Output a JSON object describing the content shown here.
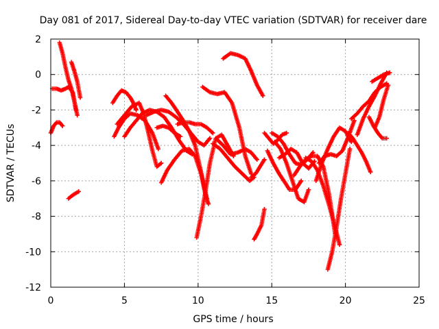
{
  "chart_data": {
    "type": "scatter",
    "title": "Day 081 of 2017, Sidereal Day-to-day VTEC variation (SDTVAR) for receiver dare",
    "xlabel": "GPS time / hours",
    "ylabel": "SDTVAR / TECUs",
    "xlim": [
      0,
      25
    ],
    "ylim": [
      -12,
      2
    ],
    "xticks": [
      0,
      5,
      10,
      15,
      20,
      25
    ],
    "yticks": [
      -12,
      -10,
      -8,
      -6,
      -4,
      -2,
      0,
      2
    ],
    "grid": true,
    "marker": "+",
    "color": "#ff0000",
    "series": [
      {
        "x": [
          0.0,
          0.2,
          0.4,
          0.6,
          0.8
        ],
        "y": [
          -3.3,
          -2.9,
          -2.7,
          -2.7,
          -2.9
        ]
      },
      {
        "x": [
          0.1,
          0.4,
          0.7,
          1.0,
          1.2,
          1.5,
          1.7
        ],
        "y": [
          -0.8,
          -0.8,
          -0.9,
          -0.8,
          -0.7,
          -1.0,
          -2.0
        ]
      },
      {
        "x": [
          0.6,
          0.8,
          1.0,
          1.2,
          1.4,
          1.6,
          1.8
        ],
        "y": [
          1.8,
          1.2,
          0.4,
          -0.3,
          -0.8,
          -1.5,
          -2.3
        ]
      },
      {
        "x": [
          1.4,
          1.6,
          1.8,
          2.0
        ],
        "y": [
          0.7,
          0.2,
          -0.4,
          -1.3
        ]
      },
      {
        "x": [
          1.2,
          1.5,
          1.9
        ],
        "y": [
          -7.0,
          -6.8,
          -6.6
        ]
      },
      {
        "x": [
          4.2,
          4.5,
          4.8,
          5.1,
          5.4,
          5.6,
          5.8
        ],
        "y": [
          -1.6,
          -1.2,
          -0.9,
          -1.0,
          -1.3,
          -1.6,
          -2.0
        ]
      },
      {
        "x": [
          4.3,
          4.6,
          5.0,
          5.4,
          5.9,
          6.4,
          6.9,
          7.3
        ],
        "y": [
          -3.5,
          -3.0,
          -2.5,
          -2.2,
          -2.3,
          -2.6,
          -3.3,
          -4.2
        ]
      },
      {
        "x": [
          4.5,
          5.0,
          5.5,
          6.0,
          6.3,
          6.6,
          6.9,
          7.2,
          7.5
        ],
        "y": [
          -2.8,
          -2.3,
          -1.8,
          -1.6,
          -2.2,
          -3.2,
          -4.3,
          -5.2,
          -5.0
        ]
      },
      {
        "x": [
          5.0,
          5.4,
          5.8,
          6.2,
          6.7,
          7.2,
          7.7,
          8.2,
          8.7,
          9.2,
          9.6
        ],
        "y": [
          -3.5,
          -3.0,
          -2.6,
          -2.2,
          -2.0,
          -2.1,
          -2.4,
          -3.0,
          -3.7,
          -4.3,
          -4.5
        ]
      },
      {
        "x": [
          6.5,
          7.0,
          7.5,
          8.0,
          8.5,
          9.0,
          9.5,
          10.0,
          10.4,
          10.8
        ],
        "y": [
          -2.3,
          -2.1,
          -2.0,
          -2.1,
          -2.4,
          -2.8,
          -3.3,
          -3.8,
          -4.0,
          -3.6
        ]
      },
      {
        "x": [
          7.2,
          7.6,
          8.0,
          8.4,
          8.8
        ],
        "y": [
          -3.0,
          -2.9,
          -3.0,
          -3.3,
          -3.5
        ]
      },
      {
        "x": [
          7.8,
          8.2,
          8.6,
          9.0,
          9.4,
          9.8,
          10.2,
          10.6
        ],
        "y": [
          -1.2,
          -1.6,
          -2.1,
          -2.6,
          -3.2,
          -4.0,
          -5.5,
          -7.0
        ]
      },
      {
        "x": [
          7.5,
          7.9,
          8.4,
          8.9,
          9.4,
          9.8,
          10.2,
          10.5,
          10.7
        ],
        "y": [
          -6.1,
          -5.4,
          -4.8,
          -4.3,
          -4.2,
          -4.6,
          -5.6,
          -6.8,
          -7.3
        ]
      },
      {
        "x": [
          8.6,
          9.0,
          9.4,
          9.8,
          10.2,
          10.6,
          11.0
        ],
        "y": [
          -2.8,
          -2.7,
          -2.7,
          -2.8,
          -2.8,
          -3.0,
          -3.3
        ]
      },
      {
        "x": [
          9.9,
          10.2,
          10.5,
          10.8,
          11.2,
          11.6,
          12.0,
          12.4
        ],
        "y": [
          -9.2,
          -8.0,
          -6.6,
          -5.0,
          -3.6,
          -3.4,
          -4.0,
          -4.6
        ]
      },
      {
        "x": [
          10.3,
          10.8,
          11.3,
          11.8,
          12.3,
          12.8,
          13.2,
          13.6
        ],
        "y": [
          -0.7,
          -1.0,
          -1.1,
          -1.0,
          -1.6,
          -3.0,
          -4.6,
          -5.6
        ]
      },
      {
        "x": [
          11.2,
          11.7,
          12.2,
          12.7,
          13.2,
          13.6,
          14.0
        ],
        "y": [
          -3.6,
          -4.0,
          -4.5,
          -4.4,
          -4.2,
          -4.4,
          -4.8
        ]
      },
      {
        "x": [
          11.7,
          12.2,
          12.7,
          13.2,
          13.6,
          14.0,
          14.4
        ],
        "y": [
          0.9,
          1.2,
          1.1,
          0.9,
          0.2,
          -0.6,
          -1.2
        ]
      },
      {
        "x": [
          11.0,
          11.5,
          12.0,
          12.5,
          13.0,
          13.5,
          13.8
        ],
        "y": [
          -3.9,
          -4.2,
          -4.7,
          -5.2,
          -5.6,
          -6.0,
          -5.8
        ]
      },
      {
        "x": [
          13.8,
          14.0,
          14.3,
          14.5
        ],
        "y": [
          -9.3,
          -9.0,
          -8.5,
          -7.6
        ]
      },
      {
        "x": [
          13.6,
          13.9,
          14.2,
          14.5
        ],
        "y": [
          -5.8,
          -5.6,
          -5.2,
          -4.8
        ]
      },
      {
        "x": [
          14.5,
          14.8,
          15.1,
          15.4,
          15.7,
          16.0
        ],
        "y": [
          -3.3,
          -3.6,
          -3.9,
          -3.7,
          -3.4,
          -3.3
        ]
      },
      {
        "x": [
          14.7,
          15.1,
          15.5,
          15.9,
          16.2,
          16.6,
          17.0
        ],
        "y": [
          -4.3,
          -5.0,
          -5.6,
          -6.1,
          -6.5,
          -6.5,
          -6.0
        ]
      },
      {
        "x": [
          15.0,
          15.4,
          15.8,
          16.2,
          16.6,
          17.0,
          17.4,
          17.8
        ],
        "y": [
          -3.3,
          -3.5,
          -3.9,
          -4.5,
          -5.0,
          -5.1,
          -4.8,
          -4.4
        ]
      },
      {
        "x": [
          15.2,
          15.6,
          16.0,
          16.4,
          16.8,
          17.2,
          17.5
        ],
        "y": [
          -3.8,
          -4.2,
          -5.0,
          -6.0,
          -7.0,
          -7.2,
          -6.5
        ]
      },
      {
        "x": [
          15.5,
          15.9,
          16.3,
          16.7,
          17.1,
          17.5,
          17.9
        ],
        "y": [
          -4.7,
          -4.5,
          -4.2,
          -4.4,
          -5.0,
          -5.3,
          -4.9
        ]
      },
      {
        "x": [
          16.5,
          16.9,
          17.3,
          17.7,
          18.1,
          18.5,
          18.9,
          19.3
        ],
        "y": [
          -5.7,
          -5.2,
          -4.8,
          -4.6,
          -4.6,
          -5.2,
          -6.8,
          -9.0
        ]
      },
      {
        "x": [
          17.3,
          17.7,
          18.1,
          18.5,
          18.9,
          19.3,
          19.6
        ],
        "y": [
          -4.7,
          -4.9,
          -5.4,
          -6.3,
          -7.4,
          -8.6,
          -9.6
        ]
      },
      {
        "x": [
          18.8,
          19.1,
          19.4,
          19.7,
          20.0,
          20.3
        ],
        "y": [
          -11.0,
          -10.0,
          -8.6,
          -7.0,
          -5.6,
          -4.2
        ]
      },
      {
        "x": [
          18.0,
          18.4,
          18.8,
          19.2,
          19.6,
          20.0,
          20.4
        ],
        "y": [
          -6.0,
          -5.0,
          -4.2,
          -3.5,
          -3.0,
          -3.2,
          -3.8
        ]
      },
      {
        "x": [
          18.2,
          18.6,
          19.0,
          19.4,
          19.8,
          20.2,
          20.6
        ],
        "y": [
          -5.0,
          -4.6,
          -4.5,
          -4.6,
          -4.3,
          -3.5,
          -2.6
        ]
      },
      {
        "x": [
          20.2,
          20.5,
          20.8,
          21.1,
          21.4,
          21.7
        ],
        "y": [
          -3.3,
          -3.6,
          -4.0,
          -4.4,
          -4.9,
          -5.5
        ]
      },
      {
        "x": [
          20.4,
          20.8,
          21.2,
          21.6,
          22.0,
          22.4,
          22.8
        ],
        "y": [
          -2.5,
          -2.2,
          -1.8,
          -1.5,
          -1.0,
          -0.7,
          -0.5
        ]
      },
      {
        "x": [
          20.8,
          21.2,
          21.6,
          22.0,
          22.4,
          22.8
        ],
        "y": [
          -3.4,
          -2.5,
          -1.8,
          -1.2,
          -0.5,
          0.1
        ]
      },
      {
        "x": [
          21.8,
          22.2,
          22.6,
          23.0
        ],
        "y": [
          -0.4,
          -0.2,
          0.0,
          0.1
        ]
      },
      {
        "x": [
          21.6,
          21.9,
          22.2,
          22.5,
          22.8
        ],
        "y": [
          -2.4,
          -2.9,
          -3.3,
          -3.6,
          -3.6
        ]
      },
      {
        "x": [
          22.0,
          22.3,
          22.6,
          22.9
        ],
        "y": [
          -3.0,
          -2.4,
          -1.4,
          -0.6
        ]
      }
    ]
  }
}
